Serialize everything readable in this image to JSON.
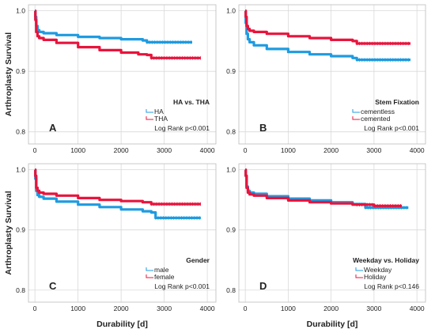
{
  "chart_data": [
    {
      "type": "line",
      "panel_label": "A",
      "ylabel": "Arthroplasty Survival",
      "xlabel": "",
      "xlim": [
        -150,
        4200
      ],
      "ylim": [
        0.78,
        1.01
      ],
      "xticks": [
        0,
        1000,
        2000,
        3000,
        4000
      ],
      "yticks": [
        0.8,
        0.9,
        1.0
      ],
      "ytick_labels": [
        "0.8",
        "0.9",
        "1.0"
      ],
      "grid": true,
      "legend": {
        "title": "HA vs. THA",
        "position": "bottom-right",
        "note": "Log Rank p<0.001"
      },
      "series": [
        {
          "name": "HA",
          "color": "#1f9be0",
          "x": [
            0,
            10,
            30,
            60,
            100,
            200,
            500,
            1000,
            1500,
            2000,
            2500,
            2600,
            3000,
            3500,
            3650
          ],
          "y": [
            1.0,
            0.99,
            0.975,
            0.968,
            0.965,
            0.963,
            0.96,
            0.957,
            0.955,
            0.953,
            0.951,
            0.948,
            0.948,
            0.948,
            0.948
          ]
        },
        {
          "name": "THA",
          "color": "#e8143c",
          "x": [
            0,
            10,
            30,
            60,
            100,
            200,
            500,
            1000,
            1500,
            2000,
            2400,
            2600,
            2700,
            3000,
            3500,
            3850
          ],
          "y": [
            1.0,
            0.985,
            0.965,
            0.958,
            0.955,
            0.952,
            0.947,
            0.94,
            0.935,
            0.931,
            0.928,
            0.927,
            0.922,
            0.922,
            0.922,
            0.922
          ]
        }
      ]
    },
    {
      "type": "line",
      "panel_label": "B",
      "ylabel": "",
      "xlabel": "",
      "xlim": [
        -150,
        4200
      ],
      "ylim": [
        0.78,
        1.01
      ],
      "xticks": [
        0,
        1000,
        2000,
        3000,
        4000
      ],
      "yticks": [
        0.8,
        0.9,
        1.0
      ],
      "ytick_labels": [
        "0.8",
        "0.9",
        "1.0"
      ],
      "grid": true,
      "legend": {
        "title": "Stem Fixation",
        "position": "bottom-right",
        "note": "Log Rank p<0.001"
      },
      "series": [
        {
          "name": "cementless",
          "color": "#1f9be0",
          "x": [
            0,
            10,
            30,
            60,
            100,
            200,
            500,
            1000,
            1500,
            2000,
            2500,
            2600,
            3000,
            3500,
            3850
          ],
          "y": [
            1.0,
            0.98,
            0.962,
            0.953,
            0.948,
            0.943,
            0.937,
            0.932,
            0.928,
            0.925,
            0.922,
            0.919,
            0.919,
            0.919,
            0.919
          ]
        },
        {
          "name": "cemented",
          "color": "#e8143c",
          "x": [
            0,
            10,
            30,
            60,
            100,
            200,
            500,
            1000,
            1500,
            2000,
            2500,
            2600,
            3000,
            3500,
            3850
          ],
          "y": [
            1.0,
            0.99,
            0.975,
            0.97,
            0.967,
            0.965,
            0.962,
            0.958,
            0.955,
            0.952,
            0.95,
            0.946,
            0.946,
            0.946,
            0.946
          ]
        }
      ]
    },
    {
      "type": "line",
      "panel_label": "C",
      "ylabel": "Arthroplasty Survival",
      "xlabel": "Durability [d]",
      "xlim": [
        -150,
        4200
      ],
      "ylim": [
        0.78,
        1.01
      ],
      "xticks": [
        0,
        1000,
        2000,
        3000,
        4000
      ],
      "yticks": [
        0.8,
        0.9,
        1.0
      ],
      "ytick_labels": [
        "0.8",
        "0.9",
        "1.0"
      ],
      "grid": true,
      "legend": {
        "title": "Gender",
        "position": "bottom-right",
        "note": "Log Rank p<0.001"
      },
      "series": [
        {
          "name": "male",
          "color": "#1f9be0",
          "x": [
            0,
            10,
            30,
            60,
            100,
            200,
            500,
            1000,
            1500,
            2000,
            2500,
            2700,
            2800,
            3000,
            3500,
            3850
          ],
          "y": [
            1.0,
            0.985,
            0.965,
            0.958,
            0.955,
            0.952,
            0.947,
            0.942,
            0.938,
            0.934,
            0.931,
            0.929,
            0.92,
            0.92,
            0.92,
            0.92
          ]
        },
        {
          "name": "female",
          "color": "#e8143c",
          "x": [
            0,
            10,
            30,
            60,
            100,
            200,
            500,
            1000,
            1500,
            2000,
            2500,
            2700,
            3000,
            3500,
            3850
          ],
          "y": [
            1.0,
            0.99,
            0.97,
            0.965,
            0.962,
            0.96,
            0.957,
            0.953,
            0.95,
            0.948,
            0.946,
            0.943,
            0.943,
            0.943,
            0.943
          ]
        }
      ]
    },
    {
      "type": "line",
      "panel_label": "D",
      "ylabel": "",
      "xlabel": "Durability [d]",
      "xlim": [
        -150,
        4200
      ],
      "ylim": [
        0.78,
        1.01
      ],
      "xticks": [
        0,
        1000,
        2000,
        3000,
        4000
      ],
      "yticks": [
        0.8,
        0.9,
        1.0
      ],
      "ytick_labels": [
        "0.8",
        "0.9",
        "1.0"
      ],
      "grid": true,
      "legend": {
        "title": "Weekday vs. Holiday",
        "position": "bottom-right",
        "note": "Log Rank p<0.146"
      },
      "series": [
        {
          "name": "Weekday",
          "color": "#1f9be0",
          "x": [
            0,
            10,
            30,
            60,
            100,
            200,
            500,
            1000,
            1500,
            2000,
            2500,
            2800,
            3000,
            3500,
            3800
          ],
          "y": [
            1.0,
            0.99,
            0.972,
            0.965,
            0.962,
            0.96,
            0.956,
            0.952,
            0.949,
            0.946,
            0.943,
            0.937,
            0.937,
            0.937,
            0.937
          ]
        },
        {
          "name": "Holiday",
          "color": "#e8143c",
          "x": [
            0,
            10,
            30,
            60,
            100,
            200,
            500,
            1000,
            1500,
            2000,
            2500,
            3000,
            3500,
            3650
          ],
          "y": [
            1.0,
            0.99,
            0.97,
            0.962,
            0.959,
            0.957,
            0.953,
            0.949,
            0.946,
            0.944,
            0.942,
            0.94,
            0.94,
            0.94
          ]
        }
      ]
    }
  ]
}
